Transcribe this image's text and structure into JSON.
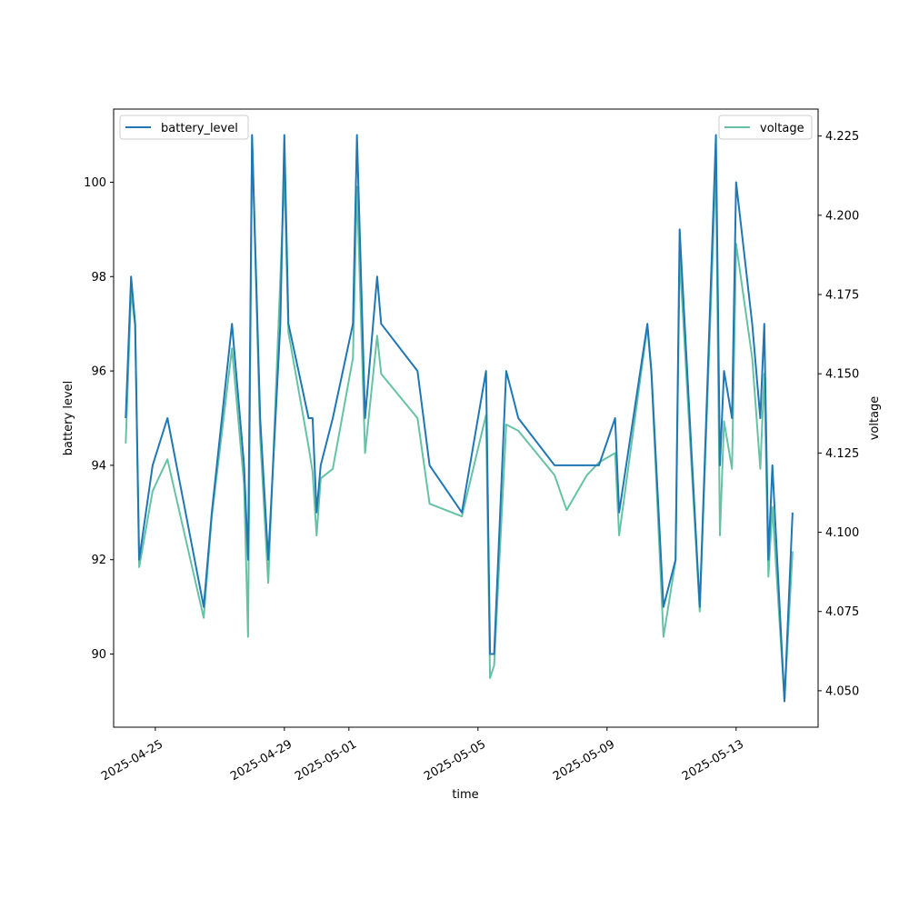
{
  "chart_data": {
    "type": "line",
    "xlabel": "time",
    "ylabel_left": "battery level",
    "ylabel_right": "voltage",
    "xlim": [
      "2025-04-23T17:00",
      "2025-05-15T13:00"
    ],
    "ylim_left": [
      88.45,
      101.55
    ],
    "ylim_right": [
      4.0385,
      4.2335
    ],
    "x_ticks": [
      "2025-04-25",
      "2025-04-29",
      "2025-05-01",
      "2025-05-05",
      "2025-05-09",
      "2025-05-13"
    ],
    "y_ticks_left": [
      90,
      92,
      94,
      96,
      98,
      100
    ],
    "y_ticks_right": [
      "4.050",
      "4.075",
      "4.100",
      "4.125",
      "4.150",
      "4.175",
      "4.200",
      "4.225"
    ],
    "grid": false,
    "series": [
      {
        "name": "battery_level",
        "axis": "left",
        "color": "#1f77b4",
        "legend": "top-left",
        "points": [
          [
            "2025-04-24T02:00",
            95
          ],
          [
            "2025-04-24T06:00",
            98
          ],
          [
            "2025-04-24T09:00",
            97
          ],
          [
            "2025-04-24T12:00",
            92
          ],
          [
            "2025-04-24T22:00",
            94
          ],
          [
            "2025-04-25T09:00",
            95
          ],
          [
            "2025-04-26T12:00",
            91
          ],
          [
            "2025-04-26T18:00",
            93
          ],
          [
            "2025-04-27T09:00",
            97
          ],
          [
            "2025-04-27T18:00",
            94
          ],
          [
            "2025-04-27T21:00",
            92
          ],
          [
            "2025-04-28T00:00",
            101
          ],
          [
            "2025-04-28T06:00",
            95
          ],
          [
            "2025-04-28T12:00",
            92
          ],
          [
            "2025-04-28T21:00",
            97
          ],
          [
            "2025-04-29T00:00",
            101
          ],
          [
            "2025-04-29T03:00",
            97
          ],
          [
            "2025-04-29T18:00",
            95
          ],
          [
            "2025-04-29T21:00",
            95
          ],
          [
            "2025-04-30T00:00",
            93
          ],
          [
            "2025-04-30T03:00",
            94
          ],
          [
            "2025-04-30T12:00",
            95
          ],
          [
            "2025-05-01T03:00",
            97
          ],
          [
            "2025-05-01T06:00",
            101
          ],
          [
            "2025-05-01T12:00",
            95
          ],
          [
            "2025-05-01T21:00",
            98
          ],
          [
            "2025-05-02T00:00",
            97
          ],
          [
            "2025-05-03T03:00",
            96
          ],
          [
            "2025-05-03T12:00",
            94
          ],
          [
            "2025-05-04T12:00",
            93
          ],
          [
            "2025-05-05T06:00",
            96
          ],
          [
            "2025-05-05T09:00",
            90
          ],
          [
            "2025-05-05T12:00",
            90
          ],
          [
            "2025-05-05T21:00",
            96
          ],
          [
            "2025-05-06T06:00",
            95
          ],
          [
            "2025-05-07T09:00",
            94
          ],
          [
            "2025-05-07T18:00",
            94
          ],
          [
            "2025-05-08T09:00",
            94
          ],
          [
            "2025-05-08T18:00",
            94
          ],
          [
            "2025-05-09T06:00",
            95
          ],
          [
            "2025-05-09T09:00",
            93
          ],
          [
            "2025-05-10T06:00",
            97
          ],
          [
            "2025-05-10T09:00",
            96
          ],
          [
            "2025-05-10T18:00",
            91
          ],
          [
            "2025-05-11T03:00",
            92
          ],
          [
            "2025-05-11T06:00",
            99
          ],
          [
            "2025-05-11T21:00",
            91
          ],
          [
            "2025-05-12T09:00",
            101
          ],
          [
            "2025-05-12T12:00",
            94
          ],
          [
            "2025-05-12T15:00",
            96
          ],
          [
            "2025-05-12T21:00",
            95
          ],
          [
            "2025-05-13T00:00",
            100
          ],
          [
            "2025-05-13T12:00",
            97
          ],
          [
            "2025-05-13T18:00",
            95
          ],
          [
            "2025-05-13T21:00",
            97
          ],
          [
            "2025-05-14T00:00",
            92
          ],
          [
            "2025-05-14T03:00",
            94
          ],
          [
            "2025-05-14T12:00",
            89
          ],
          [
            "2025-05-14T18:00",
            93
          ]
        ]
      },
      {
        "name": "voltage",
        "axis": "right",
        "color": "#66c2a5",
        "legend": "top-right",
        "points": [
          [
            "2025-04-24T02:00",
            4.128
          ],
          [
            "2025-04-24T06:00",
            4.176
          ],
          [
            "2025-04-24T09:00",
            4.165
          ],
          [
            "2025-04-24T12:00",
            4.089
          ],
          [
            "2025-04-24T22:00",
            4.113
          ],
          [
            "2025-04-25T09:00",
            4.123
          ],
          [
            "2025-04-26T12:00",
            4.073
          ],
          [
            "2025-04-26T18:00",
            4.105
          ],
          [
            "2025-04-27T09:00",
            4.158
          ],
          [
            "2025-04-27T18:00",
            4.115
          ],
          [
            "2025-04-27T21:00",
            4.067
          ],
          [
            "2025-04-28T00:00",
            4.225
          ],
          [
            "2025-04-28T06:00",
            4.13
          ],
          [
            "2025-04-28T12:00",
            4.084
          ],
          [
            "2025-04-28T21:00",
            4.18
          ],
          [
            "2025-04-29T00:00",
            4.213
          ],
          [
            "2025-04-29T03:00",
            4.163
          ],
          [
            "2025-04-29T18:00",
            4.127
          ],
          [
            "2025-04-29T21:00",
            4.119
          ],
          [
            "2025-04-30T00:00",
            4.099
          ],
          [
            "2025-04-30T03:00",
            4.117
          ],
          [
            "2025-04-30T12:00",
            4.12
          ],
          [
            "2025-05-01T03:00",
            4.155
          ],
          [
            "2025-05-01T06:00",
            4.209
          ],
          [
            "2025-05-01T12:00",
            4.125
          ],
          [
            "2025-05-01T21:00",
            4.162
          ],
          [
            "2025-05-02T00:00",
            4.15
          ],
          [
            "2025-05-03T03:00",
            4.136
          ],
          [
            "2025-05-03T12:00",
            4.109
          ],
          [
            "2025-05-04T12:00",
            4.105
          ],
          [
            "2025-05-05T06:00",
            4.137
          ],
          [
            "2025-05-05T09:00",
            4.054
          ],
          [
            "2025-05-05T12:00",
            4.058
          ],
          [
            "2025-05-05T21:00",
            4.134
          ],
          [
            "2025-05-06T06:00",
            4.132
          ],
          [
            "2025-05-07T09:00",
            4.118
          ],
          [
            "2025-05-07T18:00",
            4.107
          ],
          [
            "2025-05-08T09:00",
            4.118
          ],
          [
            "2025-05-08T18:00",
            4.122
          ],
          [
            "2025-05-09T06:00",
            4.125
          ],
          [
            "2025-05-09T09:00",
            4.099
          ],
          [
            "2025-05-10T06:00",
            4.165
          ],
          [
            "2025-05-10T09:00",
            4.15
          ],
          [
            "2025-05-10T18:00",
            4.067
          ],
          [
            "2025-05-11T03:00",
            4.091
          ],
          [
            "2025-05-11T06:00",
            4.187
          ],
          [
            "2025-05-11T21:00",
            4.075
          ],
          [
            "2025-05-12T09:00",
            4.216
          ],
          [
            "2025-05-12T12:00",
            4.099
          ],
          [
            "2025-05-12T15:00",
            4.135
          ],
          [
            "2025-05-12T21:00",
            4.12
          ],
          [
            "2025-05-13T00:00",
            4.191
          ],
          [
            "2025-05-13T12:00",
            4.155
          ],
          [
            "2025-05-13T18:00",
            4.12
          ],
          [
            "2025-05-13T21:00",
            4.15
          ],
          [
            "2025-05-14T00:00",
            4.086
          ],
          [
            "2025-05-14T03:00",
            4.108
          ],
          [
            "2025-05-14T12:00",
            4.047
          ],
          [
            "2025-05-14T18:00",
            4.094
          ]
        ]
      }
    ]
  }
}
